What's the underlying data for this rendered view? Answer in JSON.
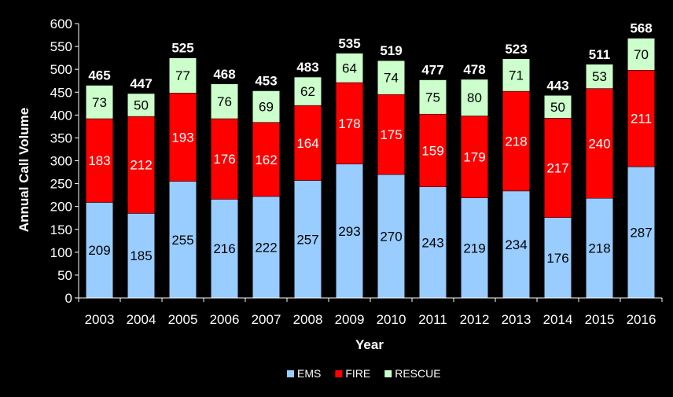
{
  "chart_data": {
    "type": "bar",
    "stacked": true,
    "categories": [
      "2003",
      "2004",
      "2005",
      "2006",
      "2007",
      "2008",
      "2009",
      "2010",
      "2011",
      "2012",
      "2013",
      "2014",
      "2015",
      "2016"
    ],
    "series": [
      {
        "name": "EMS",
        "color": "#99ccff",
        "label_color": "#000000",
        "values": [
          209,
          185,
          255,
          216,
          222,
          257,
          293,
          270,
          243,
          219,
          234,
          176,
          218,
          287
        ]
      },
      {
        "name": "FIRE",
        "color": "#ff0000",
        "label_color": "#ffffff",
        "values": [
          183,
          212,
          193,
          176,
          162,
          164,
          178,
          175,
          159,
          179,
          218,
          217,
          240,
          211
        ]
      },
      {
        "name": "RESCUE",
        "color": "#ccffcc",
        "label_color": "#000000",
        "values": [
          73,
          50,
          77,
          76,
          69,
          62,
          64,
          74,
          75,
          80,
          71,
          50,
          53,
          70
        ]
      }
    ],
    "totals": [
      465,
      447,
      525,
      468,
      453,
      483,
      535,
      519,
      477,
      478,
      523,
      443,
      511,
      568
    ],
    "xlabel": "Year",
    "ylabel": "Annual Call Volume",
    "ylim": [
      0,
      600
    ],
    "yticks": [
      0,
      50,
      100,
      150,
      200,
      250,
      300,
      350,
      400,
      450,
      500,
      550,
      600
    ],
    "grid": false,
    "legend_position": "bottom-center"
  }
}
